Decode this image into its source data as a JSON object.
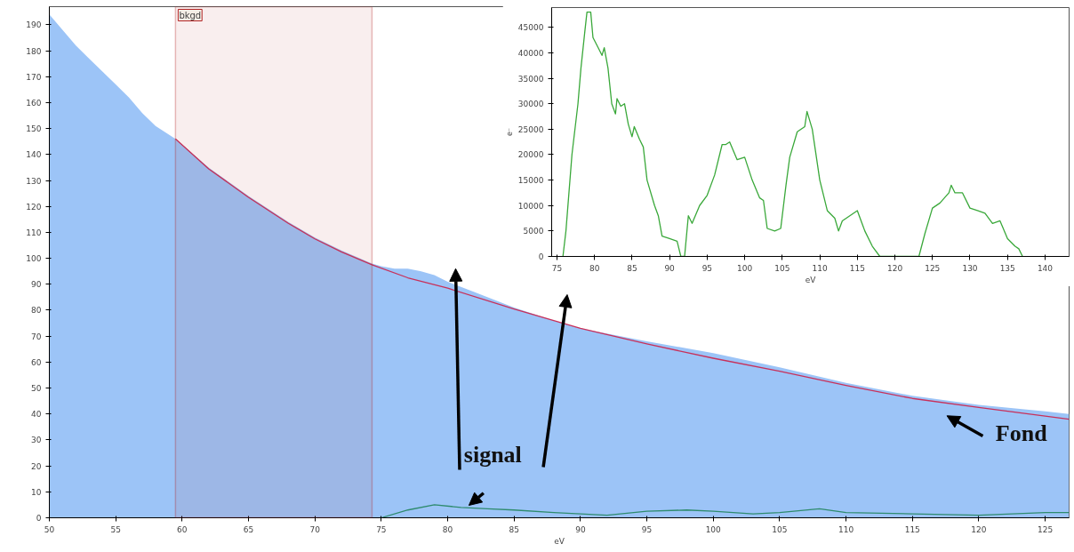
{
  "chart_data": [
    {
      "type": "area",
      "xlabel": "eV",
      "xlim": [
        50,
        126.8
      ],
      "ylim": [
        0,
        197
      ],
      "xticks": [
        50,
        55,
        60,
        65,
        70,
        75,
        80,
        85,
        90,
        95,
        100,
        105,
        110,
        115,
        120,
        125
      ],
      "yticks": [
        0,
        10,
        20,
        30,
        40,
        50,
        60,
        70,
        80,
        90,
        100,
        110,
        120,
        130,
        140,
        150,
        160,
        170,
        180,
        190
      ],
      "grid": false,
      "series": [
        {
          "type": "area",
          "color": "#9cc4f7",
          "x": [
            50,
            51,
            52,
            53,
            54,
            55,
            56,
            57,
            58,
            59.5,
            62,
            65,
            68,
            70,
            72,
            74.3,
            75,
            76,
            77,
            78,
            79,
            80,
            82,
            85,
            88,
            90,
            95,
            100,
            105,
            110,
            115,
            120,
            125,
            126.8
          ],
          "values": [
            194,
            188,
            182,
            177,
            172,
            167,
            162,
            156,
            151,
            146,
            135,
            124,
            114,
            108,
            103,
            98,
            97,
            96,
            96,
            95,
            93.5,
            91,
            87,
            81,
            76,
            73,
            68,
            63.5,
            58,
            52,
            47,
            43.5,
            41,
            40
          ]
        },
        {
          "type": "line",
          "color": "#c8305a",
          "x": [
            59.5,
            62,
            65,
            68,
            70,
            72,
            74.3,
            77,
            80,
            85,
            90,
            95,
            100,
            105,
            110,
            115,
            120,
            126.8
          ],
          "values": [
            146,
            134.5,
            123.5,
            113.5,
            107.5,
            102.5,
            97.5,
            92.5,
            88.5,
            80.5,
            73,
            67,
            61.5,
            56.5,
            51,
            46,
            42.5,
            38
          ]
        },
        {
          "type": "line",
          "color": "#2e8b6e",
          "x": [
            75,
            77,
            79,
            81,
            83,
            85,
            88,
            90,
            92,
            95,
            98,
            100,
            103,
            105,
            108,
            110,
            115,
            120,
            125,
            126.8
          ],
          "values": [
            0,
            3,
            5,
            4,
            3.5,
            3,
            2,
            1.5,
            1,
            2.5,
            3,
            2.5,
            1.5,
            2,
            3.5,
            2,
            1.5,
            1,
            2,
            2
          ]
        }
      ],
      "bands": [
        {
          "axis": "x",
          "from": 59.5,
          "to": 74.3,
          "label": "bkgd",
          "color": "#b22222"
        }
      ],
      "annotations": [
        "signal",
        "Fond"
      ]
    },
    {
      "type": "line",
      "xlabel": "eV",
      "ylabel": "e⁻",
      "xlim": [
        74.3,
        143.2
      ],
      "ylim": [
        0,
        48900
      ],
      "xticks": [
        75,
        80,
        85,
        90,
        95,
        100,
        105,
        110,
        115,
        120,
        125,
        130,
        135,
        140
      ],
      "yticks": [
        0,
        5000,
        10000,
        15000,
        20000,
        25000,
        30000,
        35000,
        40000,
        45000
      ],
      "grid": false,
      "series": [
        {
          "color": "#3aa83a",
          "x": [
            75.8,
            76.2,
            77,
            77.8,
            78.2,
            78.7,
            79,
            79.5,
            79.8,
            80.5,
            81,
            81.3,
            81.8,
            82.3,
            82.8,
            83,
            83.5,
            84,
            84.5,
            85,
            85.3,
            86,
            86.5,
            87,
            88,
            88.5,
            89,
            90,
            91,
            91.5,
            92,
            92.5,
            93,
            94,
            95,
            96,
            97,
            97.5,
            98,
            99,
            100,
            101,
            102,
            102.5,
            103,
            104,
            104.8,
            105.5,
            106,
            107,
            108,
            108.3,
            109,
            110,
            111,
            112,
            112.5,
            113,
            114,
            115,
            116,
            117,
            118,
            123.2,
            124,
            125,
            126,
            127.2,
            127.5,
            128,
            129,
            130,
            131,
            132,
            133,
            134,
            135,
            136,
            136.5,
            137
          ],
          "values": [
            0,
            5000,
            20000,
            30000,
            37000,
            44000,
            48000,
            48000,
            43000,
            41000,
            39500,
            41000,
            37000,
            30000,
            28000,
            31000,
            29500,
            30000,
            26000,
            23500,
            25500,
            23000,
            21500,
            15000,
            10000,
            8000,
            4000,
            3500,
            3000,
            0,
            0,
            8000,
            6500,
            10000,
            12000,
            16000,
            22000,
            22000,
            22500,
            19000,
            19500,
            15000,
            11500,
            11000,
            5500,
            5000,
            5500,
            14000,
            19500,
            24500,
            25500,
            28500,
            25000,
            15000,
            9000,
            7500,
            5000,
            7000,
            8000,
            9000,
            5000,
            2000,
            0,
            0,
            4500,
            9500,
            10500,
            12500,
            14000,
            12500,
            12500,
            9500,
            9000,
            8500,
            6500,
            7000,
            3500,
            2000,
            1500,
            0
          ]
        }
      ]
    }
  ]
}
